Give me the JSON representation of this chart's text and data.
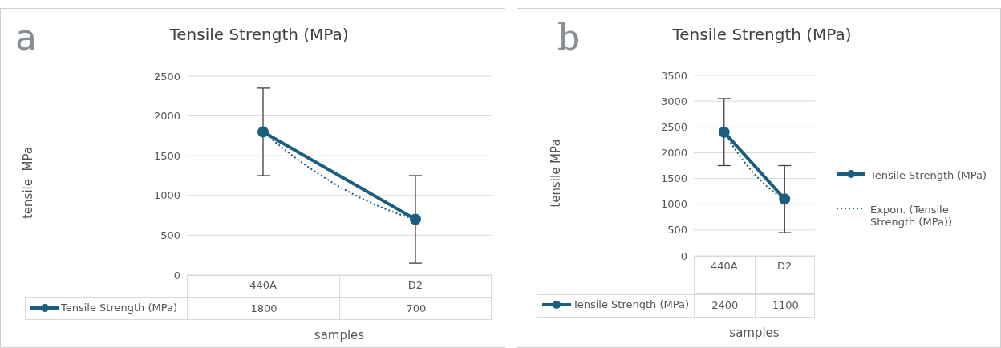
{
  "chart_data": [
    {
      "type": "line",
      "title": "Tensile Strength (MPa)",
      "xlabel": "samples",
      "ylabel": "tensile  MPa",
      "annotations": [
        "a"
      ],
      "categories": [
        "440A",
        "D2"
      ],
      "series": [
        {
          "name": "Tensile Strength (MPa)",
          "color": "#1b5e7d",
          "values": [
            1800,
            700
          ],
          "errors": [
            550,
            550
          ],
          "marker": "circle",
          "line_style": "solid",
          "data_labels": true
        },
        {
          "type": "line",
          "color": "#1b5e7d",
          "values": [
            1800,
            700
          ],
          "marker": "none",
          "line_style": "dotted"
        }
      ],
      "ylim": [
        0,
        2500
      ],
      "yticks": [
        0,
        500,
        1000,
        1500,
        2000,
        2500
      ],
      "grid": "y",
      "legend": "bottom"
    },
    {
      "type": "line",
      "title": "Tensile Strength (MPa)",
      "xlabel": "samples",
      "ylabel": "tensile MPa",
      "annotations": [
        "b"
      ],
      "categories": [
        "440A",
        "D2"
      ],
      "series": [
        {
          "name": "Tensile Strength (MPa)",
          "color": "#1b5e7d",
          "values": [
            2400,
            1100
          ],
          "errors": [
            650,
            650
          ],
          "marker": "circle",
          "line_style": "solid",
          "data_labels": true
        },
        {
          "type": "line",
          "name": "Expon. (Tensile Strength (MPa))",
          "color": "#1b5e7d",
          "values": [
            2400,
            1100
          ],
          "marker": "none",
          "line_style": "dotted"
        }
      ],
      "ylim": [
        0,
        3500
      ],
      "yticks": [
        0,
        500,
        1000,
        1500,
        2000,
        2500,
        3000,
        3500
      ],
      "grid": "y",
      "legend": "right"
    }
  ]
}
